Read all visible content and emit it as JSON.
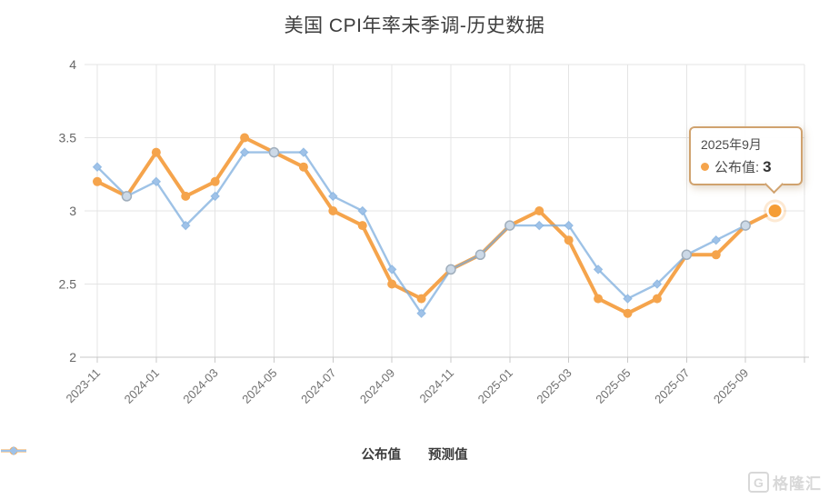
{
  "title": "美国 CPI年率未季调-历史数据",
  "chart_data": {
    "type": "line",
    "x_tick_labels": [
      "2023-11",
      "2024-01",
      "2024-03",
      "2024-05",
      "2024-07",
      "2024-09",
      "2024-11",
      "2025-01",
      "2025-03",
      "2025-05",
      "2025-07",
      "2025-09"
    ],
    "points_per_tick": 2,
    "n_points": 24,
    "series": [
      {
        "name": "公布值",
        "marker": "circle",
        "values": [
          3.2,
          3.1,
          3.4,
          3.1,
          3.2,
          3.5,
          3.4,
          3.3,
          3.0,
          2.9,
          2.5,
          2.4,
          2.6,
          2.7,
          2.9,
          3.0,
          2.8,
          2.4,
          2.3,
          2.4,
          2.7,
          2.7,
          2.9,
          3.0
        ]
      },
      {
        "name": "预测值",
        "marker": "diamond",
        "values": [
          3.3,
          3.1,
          3.2,
          2.9,
          3.1,
          3.4,
          3.4,
          3.4,
          3.1,
          3.0,
          2.6,
          2.3,
          2.6,
          2.7,
          2.9,
          2.9,
          2.9,
          2.6,
          2.4,
          2.5,
          2.7,
          2.8,
          2.9,
          null
        ]
      }
    ],
    "highlighted_point_index": 23,
    "y_ticks": [
      "4",
      "3.5",
      "3",
      "2.5",
      "2"
    ],
    "ylim": [
      2,
      4
    ],
    "grid": true,
    "legend_position": "bottom"
  },
  "tooltip": {
    "date_label": "2025年9月",
    "series_label": "公布值:",
    "value": "3"
  },
  "legend": {
    "published_label": "公布值",
    "forecast_label": "预测值"
  },
  "watermark": {
    "letter": "G",
    "text": "格隆汇"
  },
  "colors": {
    "published": "#f5a44c",
    "published_emph": "#f59d35",
    "forecast_stroke": "#78aadc",
    "forecast_fill": "#9fc2e8",
    "overlap_fill": "#ccd9e7",
    "overlap_stroke": "#a0aebc",
    "grid": "#e4e4e4",
    "axis": "#c9c9c9",
    "tick_text": "#707070",
    "title_text": "#3d3d3d",
    "tooltip_border": "#d0a26e",
    "watermark_gray": "#d8d8d8"
  }
}
